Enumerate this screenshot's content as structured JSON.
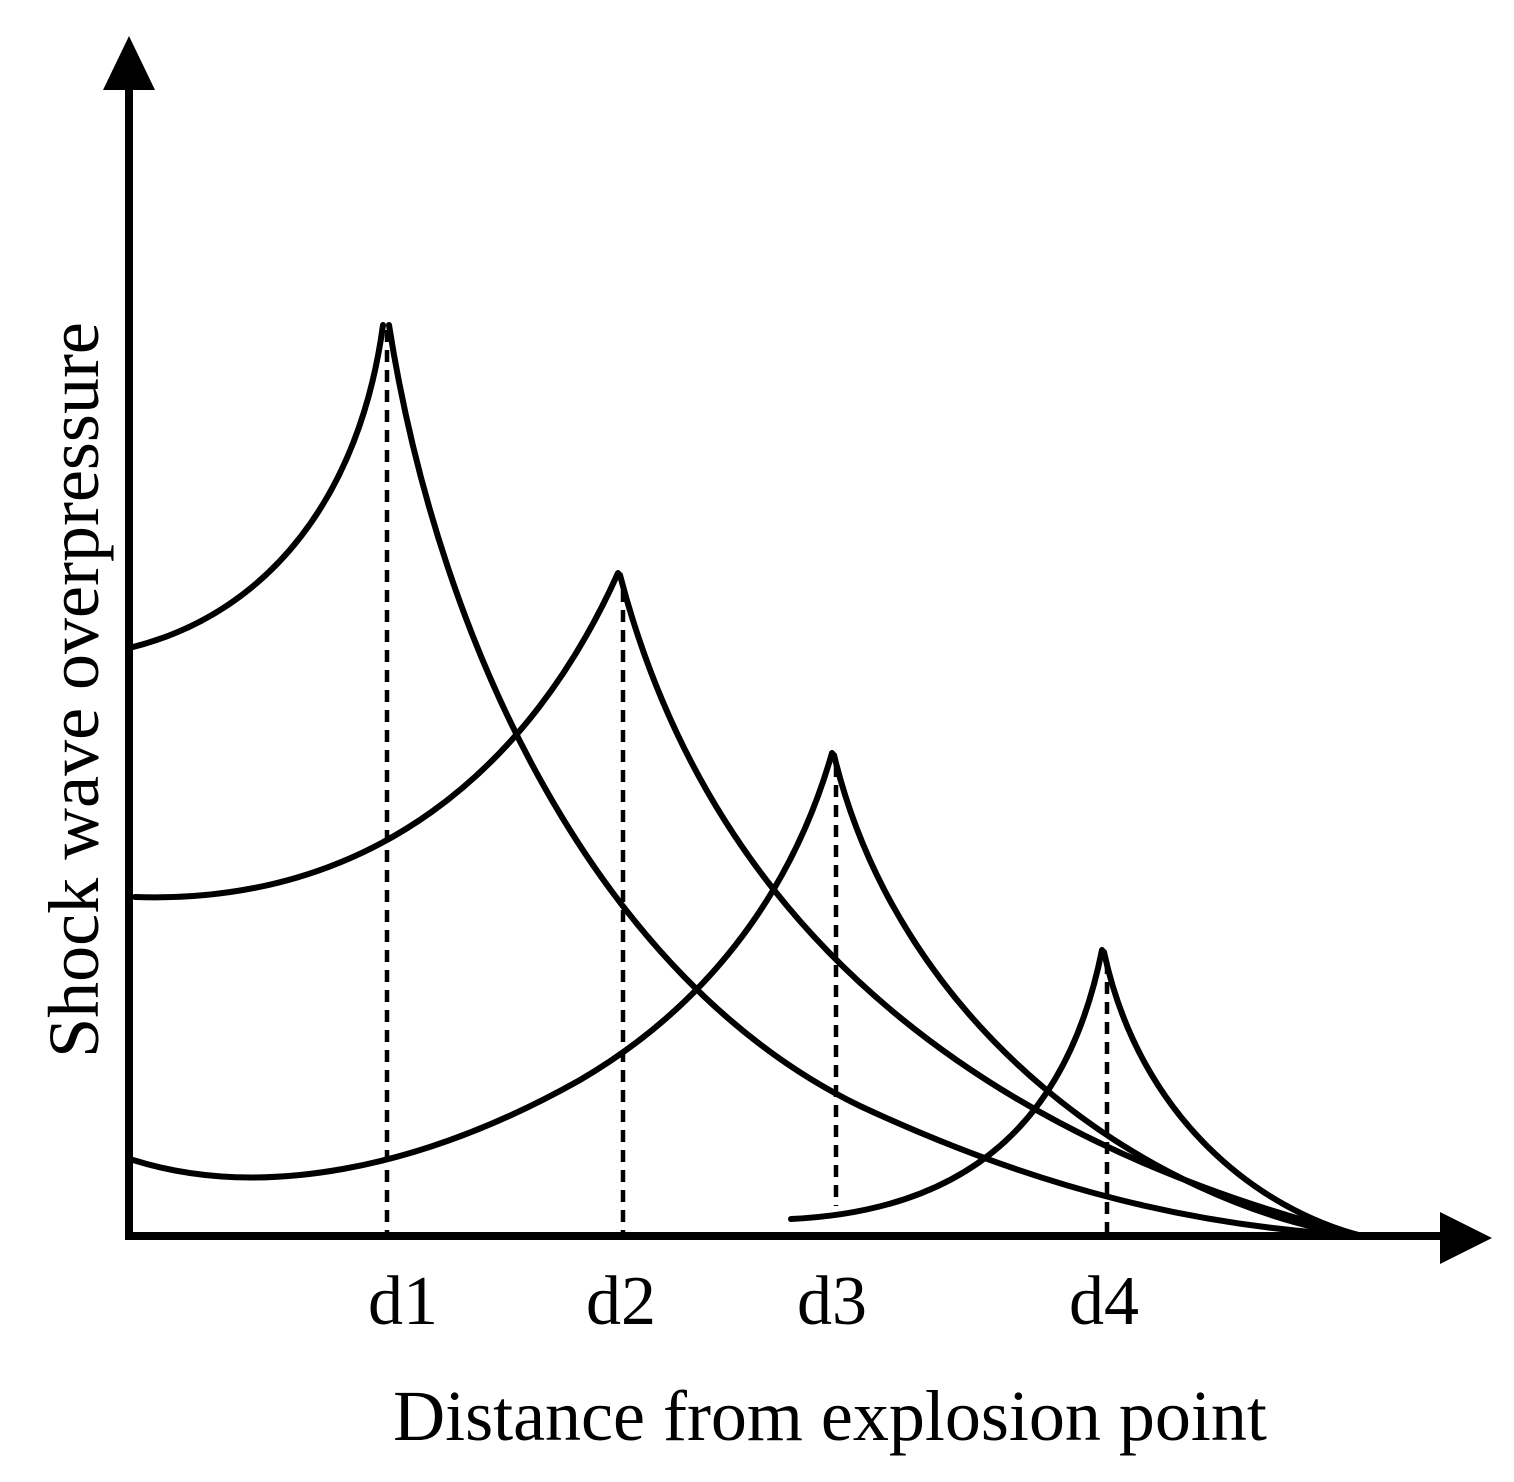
{
  "diagram": {
    "x_axis_title": "Distance from explosion point",
    "y_axis_title": "Shock wave overpressure",
    "x_ticks": [
      "d1",
      "d2",
      "d3",
      "d4"
    ],
    "line_color": "#000000",
    "background_color": "#ffffff"
  }
}
